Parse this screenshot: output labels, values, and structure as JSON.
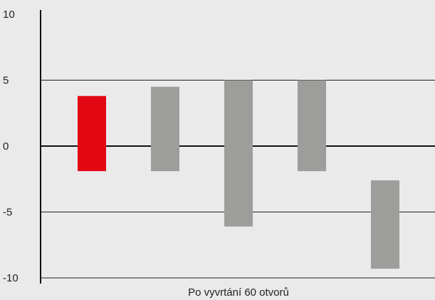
{
  "chart_data": {
    "type": "bar",
    "subtype": "floating-range",
    "title": "",
    "xlabel": "Po vyvrtání 60 otvorů",
    "ylabel": "",
    "ylim": [
      -10,
      10
    ],
    "yticks": [
      "10",
      "5",
      "0",
      "-5",
      "-10"
    ],
    "ytick_values": [
      10,
      5,
      0,
      -5,
      -10
    ],
    "grid": true,
    "legend": "none",
    "bars": [
      {
        "low": -1.9,
        "high": 3.8,
        "color": "#e30613"
      },
      {
        "low": -1.9,
        "high": 4.5,
        "color": "#9d9d9b"
      },
      {
        "low": -6.1,
        "high": 5.0,
        "color": "#9d9d9b"
      },
      {
        "low": -1.9,
        "high": 5.0,
        "color": "#9d9d9b"
      },
      {
        "low": -9.3,
        "high": -2.6,
        "color": "#9d9d9b"
      }
    ]
  },
  "colors": {
    "background": "#eaeaea",
    "axis": "#111111",
    "grid": "#222222"
  }
}
